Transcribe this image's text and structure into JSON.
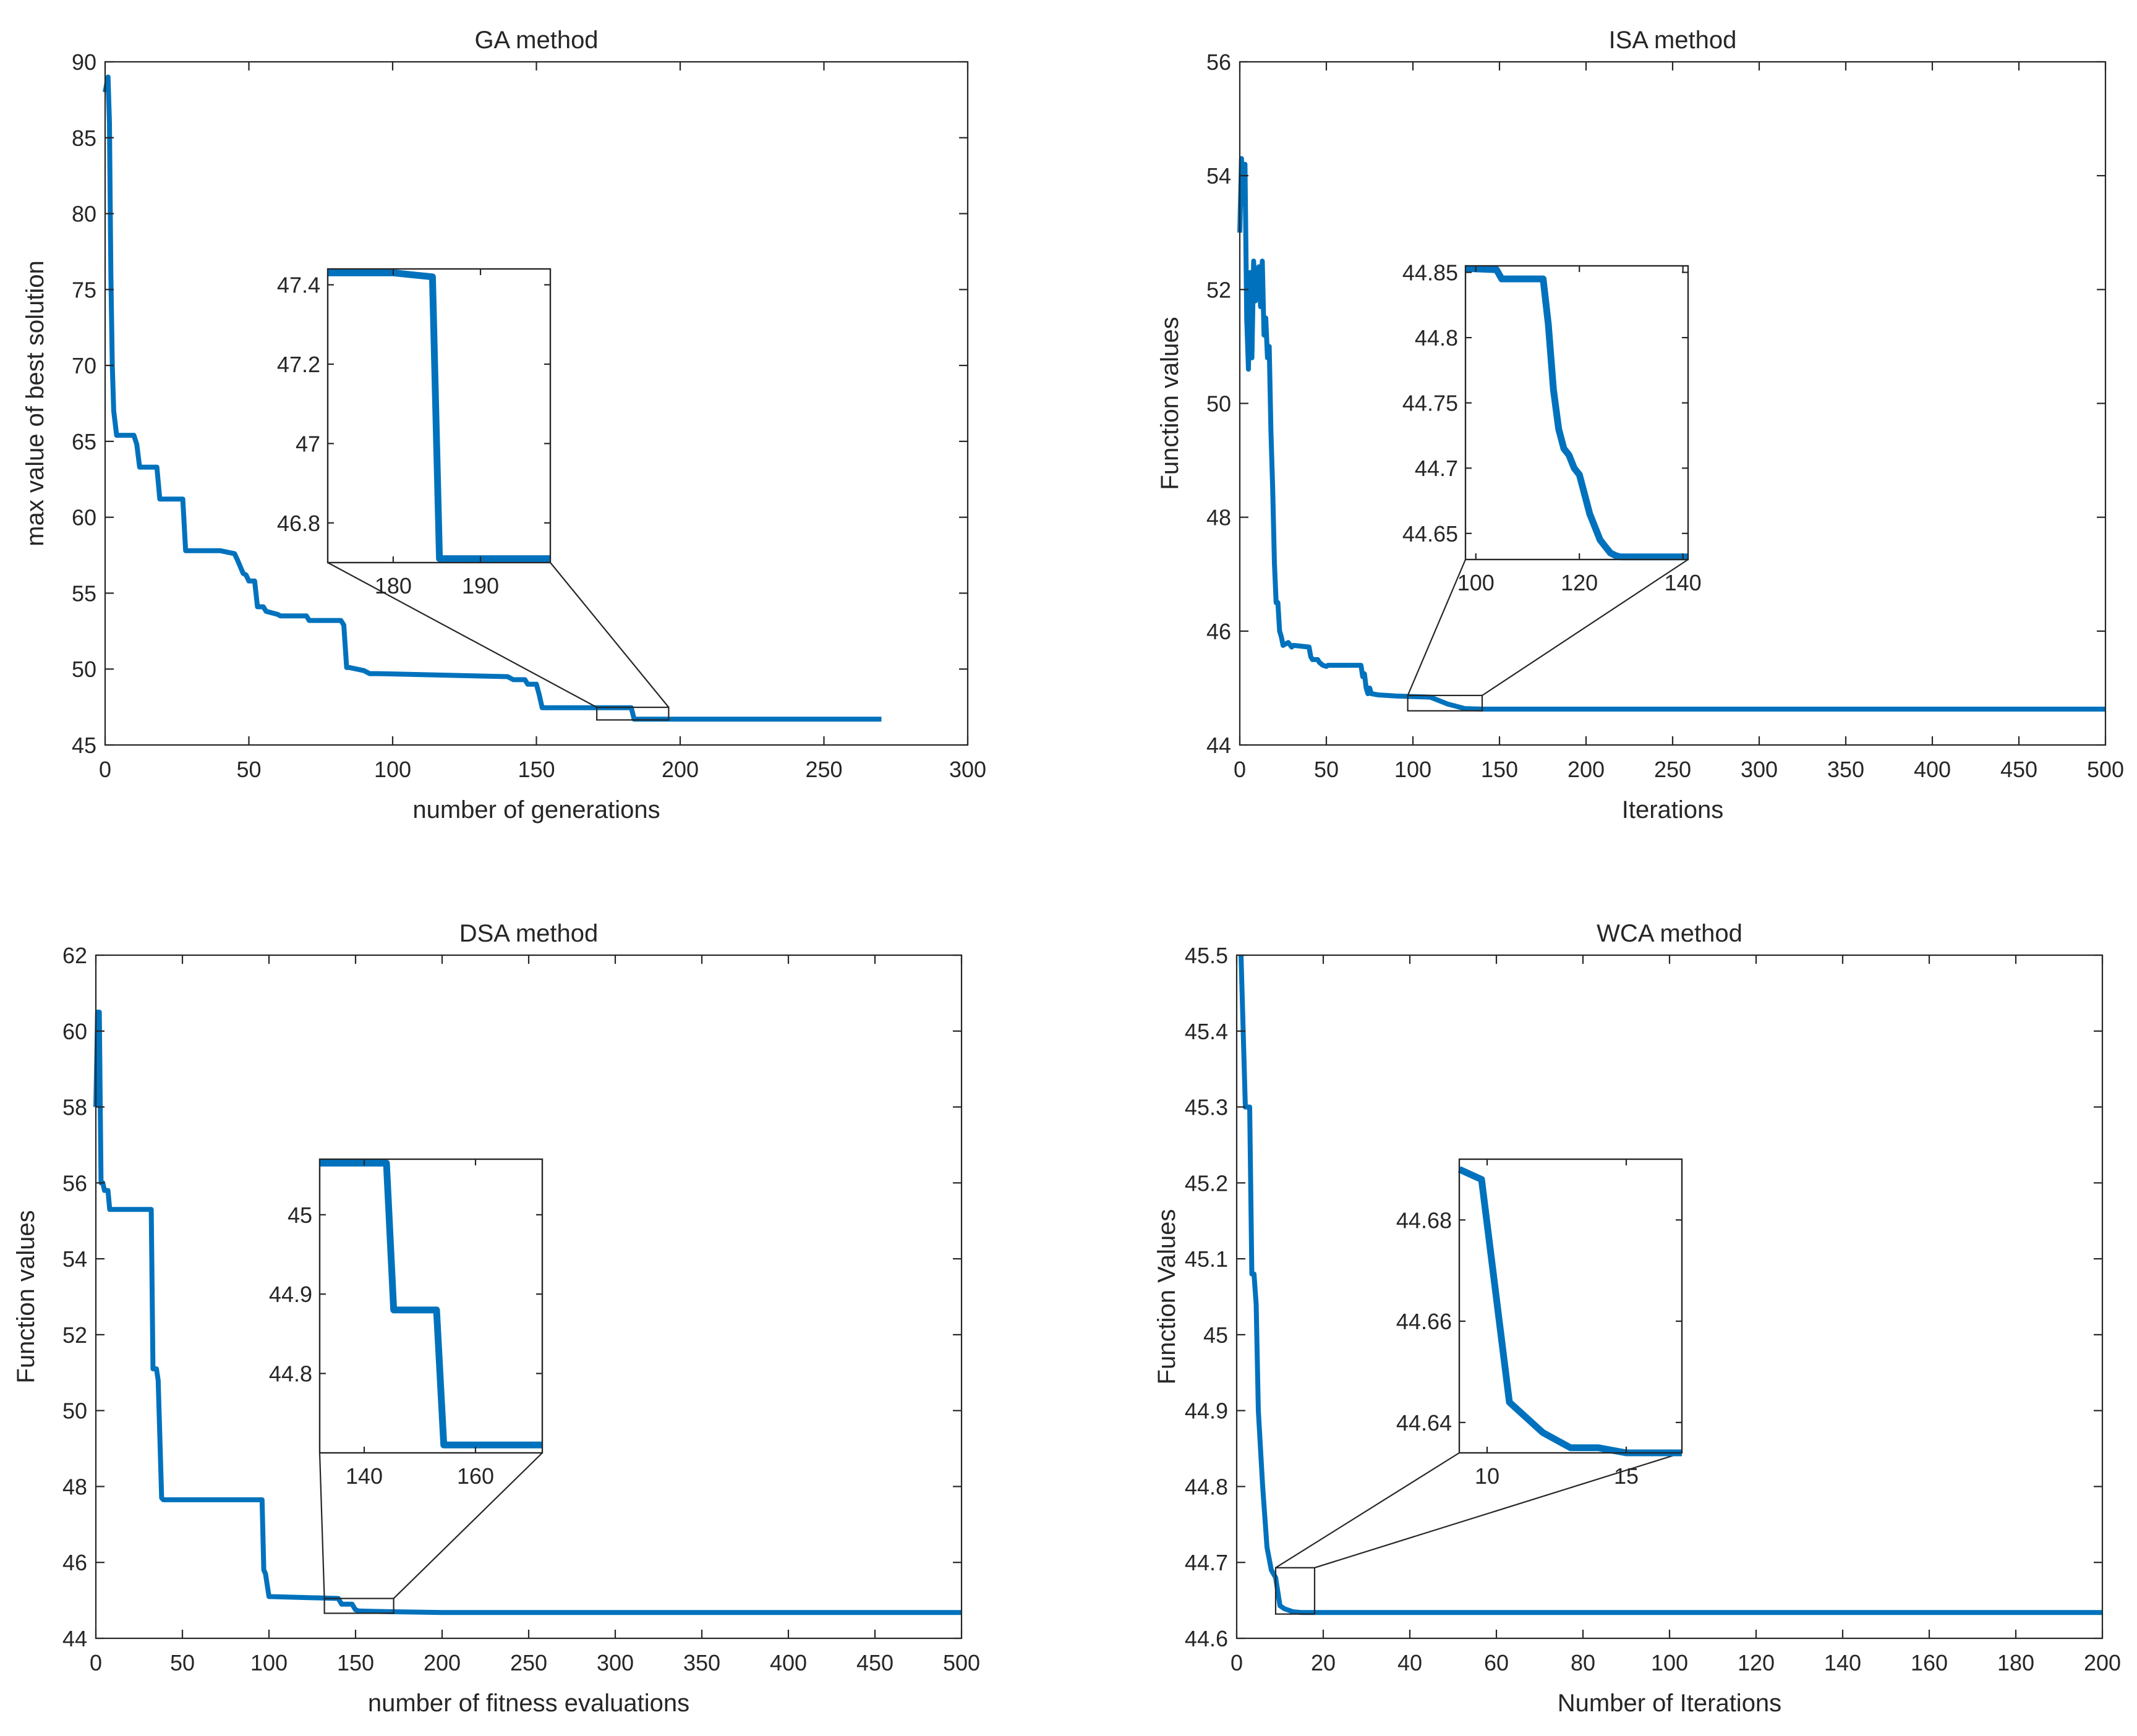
{
  "chart_data": [
    {
      "type": "line",
      "title": "GA method",
      "xlabel": "number of generations",
      "ylabel": "max value of best solution",
      "xlim": [
        0,
        300
      ],
      "ylim": [
        45,
        90
      ],
      "xticks": [
        0,
        50,
        100,
        150,
        200,
        250,
        300
      ],
      "yticks": [
        45,
        50,
        55,
        60,
        65,
        70,
        75,
        80,
        85,
        90
      ],
      "grid": false,
      "color": "#0072BD",
      "series": [
        {
          "x": [
            0,
            1,
            1.5,
            2,
            2.5,
            3,
            4,
            10,
            11,
            12,
            18,
            19,
            27,
            28,
            40,
            45,
            46,
            48,
            49,
            50,
            52,
            53,
            55,
            56,
            60,
            61,
            70,
            71,
            82,
            83,
            84,
            85,
            90,
            92,
            95,
            140,
            141,
            142,
            146,
            147,
            150,
            151,
            152,
            183,
            184,
            270
          ],
          "y": [
            88,
            89,
            86,
            76,
            70,
            67,
            65.4,
            65.4,
            64.8,
            63.3,
            63.3,
            61.2,
            61.2,
            57.8,
            57.8,
            57.6,
            57.2,
            56.3,
            56.2,
            55.8,
            55.8,
            54.1,
            54.1,
            53.8,
            53.6,
            53.5,
            53.5,
            53.2,
            53.2,
            52.9,
            50.1,
            50.1,
            49.9,
            49.7,
            49.7,
            49.5,
            49.4,
            49.3,
            49.3,
            49.0,
            49.0,
            48.3,
            47.45,
            47.45,
            46.7,
            46.7
          ]
        }
      ],
      "inset": {
        "xlim": [
          172.5,
          198
        ],
        "ylim": [
          46.7,
          47.44
        ],
        "xticks": [
          180,
          190
        ],
        "yticks": [
          46.8,
          47,
          47.2,
          47.4
        ],
        "zoom_region": {
          "x": [
            171,
            196
          ],
          "y": [
            46.65,
            47.48
          ]
        },
        "series": {
          "x": [
            172.5,
            180,
            184.5,
            185.3,
            198
          ],
          "y": [
            47.43,
            47.43,
            47.42,
            46.71,
            46.71
          ]
        }
      }
    },
    {
      "type": "line",
      "title": "ISA method",
      "xlabel": "Iterations",
      "ylabel": "Function values",
      "xlim": [
        0,
        500
      ],
      "ylim": [
        44,
        56
      ],
      "xticks": [
        0,
        50,
        100,
        150,
        200,
        250,
        300,
        350,
        400,
        450,
        500
      ],
      "yticks": [
        44,
        46,
        48,
        50,
        52,
        54,
        56
      ],
      "grid": false,
      "color": "#0072BD",
      "series": [
        {
          "x": [
            0,
            1,
            2,
            3,
            4,
            5,
            6,
            7,
            8,
            9,
            10,
            11,
            12,
            13,
            14,
            15,
            16,
            17,
            18,
            19,
            20,
            21,
            22,
            23,
            24,
            25,
            28,
            30,
            31,
            40,
            41,
            42,
            45,
            46,
            48,
            50,
            51,
            70,
            71,
            72,
            73,
            74,
            75,
            76,
            80,
            90,
            100,
            110,
            120,
            130,
            140,
            500
          ],
          "y": [
            53,
            54.3,
            53.5,
            54.2,
            51.5,
            50.6,
            52.3,
            50.8,
            52.5,
            51.8,
            52.0,
            52.4,
            51.7,
            52.5,
            51.2,
            51.5,
            50.8,
            51.0,
            49.5,
            48.5,
            47.2,
            46.5,
            46.5,
            46.0,
            45.9,
            45.75,
            45.8,
            45.72,
            45.75,
            45.72,
            45.55,
            45.5,
            45.5,
            45.45,
            45.4,
            45.38,
            45.4,
            45.4,
            45.2,
            45.25,
            45.0,
            44.9,
            45.0,
            44.9,
            44.88,
            44.86,
            44.85,
            44.84,
            44.72,
            44.64,
            44.63,
            44.63
          ]
        }
      ],
      "inset": {
        "xlim": [
          98,
          141
        ],
        "ylim": [
          44.63,
          44.855
        ],
        "xticks": [
          100,
          120,
          140
        ],
        "yticks": [
          44.65,
          44.7,
          44.75,
          44.8,
          44.85
        ],
        "zoom_region": {
          "x": [
            97,
            140
          ],
          "y": [
            44.6,
            44.87
          ]
        },
        "series": {
          "x": [
            98,
            104,
            105,
            113,
            114,
            115,
            116,
            117,
            118,
            119,
            120,
            121,
            122,
            123,
            124,
            125,
            126,
            127,
            128,
            141
          ],
          "y": [
            44.853,
            44.852,
            44.845,
            44.845,
            44.81,
            44.76,
            44.73,
            44.715,
            44.71,
            44.7,
            44.695,
            44.68,
            44.665,
            44.655,
            44.645,
            44.64,
            44.635,
            44.633,
            44.632,
            44.632
          ]
        }
      }
    },
    {
      "type": "line",
      "title": "DSA method",
      "xlabel": "number of fitness evaluations",
      "ylabel": "Function values",
      "xlim": [
        0,
        500
      ],
      "ylim": [
        44,
        62
      ],
      "xticks": [
        0,
        50,
        100,
        150,
        200,
        250,
        300,
        350,
        400,
        450,
        500
      ],
      "yticks": [
        44,
        46,
        48,
        50,
        52,
        54,
        56,
        58,
        60,
        62
      ],
      "grid": false,
      "color": "#0072BD",
      "series": [
        {
          "x": [
            0,
            1,
            2,
            3,
            4,
            5,
            7,
            8,
            32,
            33,
            35,
            36,
            38,
            39,
            96,
            97,
            98,
            100,
            101,
            140,
            142,
            143,
            148,
            150,
            152,
            160,
            200,
            500
          ],
          "y": [
            58,
            60.5,
            60.5,
            56.0,
            56.0,
            55.8,
            55.8,
            55.3,
            55.3,
            51.1,
            51.1,
            50.8,
            47.7,
            47.65,
            47.65,
            45.8,
            45.7,
            45.1,
            45.1,
            45.05,
            44.9,
            44.9,
            44.9,
            44.75,
            44.72,
            44.71,
            44.68,
            44.68
          ]
        }
      ],
      "inset": {
        "xlim": [
          132,
          172
        ],
        "ylim": [
          44.7,
          45.07
        ],
        "xticks": [
          140,
          160
        ],
        "yticks": [
          44.8,
          44.9,
          45
        ],
        "zoom_region": {
          "x": [
            132,
            172
          ],
          "y": [
            44.66,
            45.05
          ]
        },
        "series": {
          "x": [
            132,
            144,
            145.3,
            153,
            154.3,
            172
          ],
          "y": [
            45.065,
            45.065,
            44.88,
            44.88,
            44.71,
            44.71
          ]
        }
      }
    },
    {
      "type": "line",
      "title": "WCA method",
      "xlabel": "Number of Iterations",
      "ylabel": "Function Values",
      "xlim": [
        0,
        200
      ],
      "ylim": [
        44.6,
        45.5
      ],
      "xticks": [
        0,
        20,
        40,
        60,
        80,
        100,
        120,
        140,
        160,
        180,
        200
      ],
      "yticks": [
        44.6,
        44.7,
        44.8,
        44.9,
        45,
        45.1,
        45.2,
        45.3,
        45.4,
        45.5
      ],
      "grid": false,
      "color": "#0072BD",
      "series": [
        {
          "x": [
            1,
            2,
            2.5,
            3,
            3.5,
            4,
            4.5,
            5,
            6,
            7,
            8,
            9,
            10,
            11,
            13,
            15,
            200
          ],
          "y": [
            45.5,
            45.3,
            45.3,
            45.3,
            45.08,
            45.08,
            45.04,
            44.9,
            44.8,
            44.72,
            44.69,
            44.68,
            44.643,
            44.639,
            44.635,
            44.634,
            44.634
          ]
        }
      ],
      "inset": {
        "xlim": [
          9,
          17
        ],
        "ylim": [
          44.634,
          44.692
        ],
        "xticks": [
          10,
          15
        ],
        "yticks": [
          44.64,
          44.66,
          44.68
        ],
        "zoom_region": {
          "x": [
            9,
            18
          ],
          "y": [
            44.632,
            44.693
          ]
        },
        "series": {
          "x": [
            9,
            9.8,
            10.8,
            12,
            13,
            14,
            15,
            17
          ],
          "y": [
            44.69,
            44.688,
            44.644,
            44.638,
            44.635,
            44.635,
            44.634,
            44.634
          ]
        }
      }
    }
  ]
}
